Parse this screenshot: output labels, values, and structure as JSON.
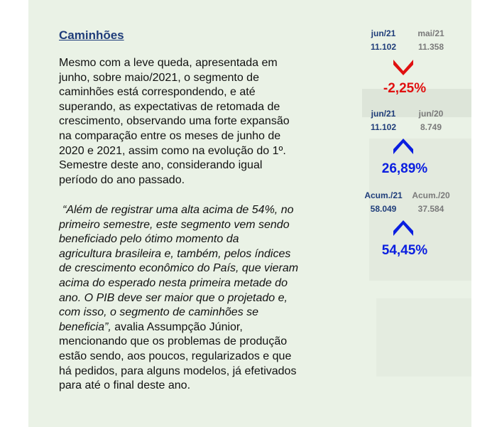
{
  "title": "Caminhões",
  "paragraph": [
    "Mesmo com a leve queda, apresentada em",
    "junho, sobre maio/2021, o segmento de",
    "caminhões está correspondendo, e até",
    "superando, as expectativas de retomada de",
    "crescimento, observando uma forte expansão",
    "na comparação entre os meses de junho de",
    "2020 e 2021, assim como na evolução do 1º.",
    "Semestre deste ano, considerando igual",
    "período do ano passado."
  ],
  "quote": [
    "“Além de registrar uma alta acima de 54%, no",
    "primeiro semestre, este segmento vem sendo",
    "beneficiado pelo ótimo momento da",
    "agricultura brasileira e, também, pelos índices",
    "de crescimento econômico do País, que vieram",
    "acima do esperado nesta primeira metade do",
    "ano. O PIB deve ser maior que o projetado e,",
    "com isso, o segmento de caminhões se",
    "beneficia”,"
  ],
  "attribution": [
    " avalia Assumpção Júnior,",
    "mencionando que os problemas de produção",
    "estão sendo, aos poucos, regularizados e que",
    "há pedidos, para alguns modelos, já efetivados",
    "para até o final deste ano."
  ],
  "comparisons": [
    {
      "current": {
        "label": "jun/21",
        "value": "11.102"
      },
      "previous": {
        "label": "mai/21",
        "value": "11.358"
      },
      "change": "-2,25%",
      "direction": "down"
    },
    {
      "current": {
        "label": "jun/21",
        "value": "11.102"
      },
      "previous": {
        "label": "jun/20",
        "value": "8.749"
      },
      "change": "26,89%",
      "direction": "up"
    },
    {
      "current": {
        "label": "Acum./21",
        "value": "58.049"
      },
      "previous": {
        "label": "Acum./20",
        "value": "37.584"
      },
      "change": "54,45%",
      "direction": "up"
    }
  ]
}
